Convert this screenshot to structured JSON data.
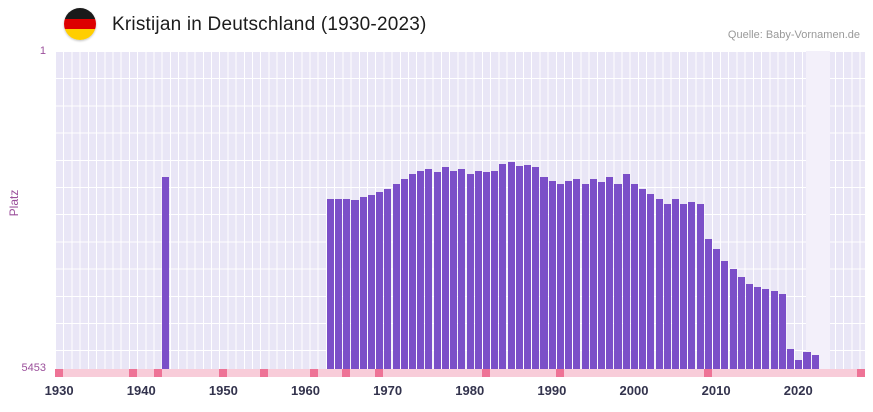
{
  "chart_data": {
    "type": "bar",
    "title": "Kristijan in Deutschland (1930-2023)",
    "source": "Quelle: Baby-Vornamen.de",
    "ylabel": "Platz",
    "y_axis": {
      "top_label": "1",
      "bottom_label": "5453",
      "min": 1,
      "max": 5453,
      "inverted": true
    },
    "x_range": [
      1930,
      2023
    ],
    "x_ticks": [
      "1930",
      "1940",
      "1950",
      "1960",
      "1970",
      "1980",
      "1990",
      "2000",
      "2010",
      "2020"
    ],
    "grid": true,
    "legend": "none",
    "points": [
      {
        "year": 1943,
        "rank": 2160
      },
      {
        "year": 1963,
        "rank": 2540
      },
      {
        "year": 1964,
        "rank": 2530
      },
      {
        "year": 1965,
        "rank": 2540
      },
      {
        "year": 1966,
        "rank": 2560
      },
      {
        "year": 1967,
        "rank": 2500
      },
      {
        "year": 1968,
        "rank": 2470
      },
      {
        "year": 1969,
        "rank": 2420
      },
      {
        "year": 1970,
        "rank": 2370
      },
      {
        "year": 1971,
        "rank": 2280
      },
      {
        "year": 1972,
        "rank": 2200
      },
      {
        "year": 1973,
        "rank": 2110
      },
      {
        "year": 1974,
        "rank": 2060
      },
      {
        "year": 1975,
        "rank": 2030
      },
      {
        "year": 1976,
        "rank": 2080
      },
      {
        "year": 1977,
        "rank": 1990
      },
      {
        "year": 1978,
        "rank": 2060
      },
      {
        "year": 1979,
        "rank": 2030
      },
      {
        "year": 1980,
        "rank": 2110
      },
      {
        "year": 1981,
        "rank": 2060
      },
      {
        "year": 1982,
        "rank": 2080
      },
      {
        "year": 1983,
        "rank": 2060
      },
      {
        "year": 1984,
        "rank": 1940
      },
      {
        "year": 1985,
        "rank": 1910
      },
      {
        "year": 1986,
        "rank": 1980
      },
      {
        "year": 1987,
        "rank": 1960
      },
      {
        "year": 1988,
        "rank": 1990
      },
      {
        "year": 1989,
        "rank": 2160
      },
      {
        "year": 1990,
        "rank": 2230
      },
      {
        "year": 1991,
        "rank": 2280
      },
      {
        "year": 1992,
        "rank": 2230
      },
      {
        "year": 1993,
        "rank": 2200
      },
      {
        "year": 1994,
        "rank": 2280
      },
      {
        "year": 1995,
        "rank": 2200
      },
      {
        "year": 1996,
        "rank": 2250
      },
      {
        "year": 1997,
        "rank": 2160
      },
      {
        "year": 1998,
        "rank": 2280
      },
      {
        "year": 1999,
        "rank": 2110
      },
      {
        "year": 2000,
        "rank": 2280
      },
      {
        "year": 2001,
        "rank": 2370
      },
      {
        "year": 2002,
        "rank": 2460
      },
      {
        "year": 2003,
        "rank": 2540
      },
      {
        "year": 2004,
        "rank": 2630
      },
      {
        "year": 2005,
        "rank": 2540
      },
      {
        "year": 2006,
        "rank": 2630
      },
      {
        "year": 2007,
        "rank": 2590
      },
      {
        "year": 2008,
        "rank": 2630
      },
      {
        "year": 2009,
        "rank": 3230
      },
      {
        "year": 2010,
        "rank": 3400
      },
      {
        "year": 2011,
        "rank": 3600
      },
      {
        "year": 2012,
        "rank": 3740
      },
      {
        "year": 2013,
        "rank": 3880
      },
      {
        "year": 2014,
        "rank": 4000
      },
      {
        "year": 2015,
        "rank": 4050
      },
      {
        "year": 2016,
        "rank": 4080
      },
      {
        "year": 2017,
        "rank": 4120
      },
      {
        "year": 2018,
        "rank": 4170
      },
      {
        "year": 2019,
        "rank": 5110
      },
      {
        "year": 2020,
        "rank": 5290
      },
      {
        "year": 2021,
        "rank": 5160
      },
      {
        "year": 2022,
        "rank": 5210
      }
    ],
    "baseline_marks": [
      1930,
      1939,
      1942,
      1950,
      1955,
      1961,
      1965,
      1969,
      1982,
      1991,
      2009
    ],
    "flag_icon": "germany-flag",
    "colors": {
      "bar": "#7b4fc8",
      "plot_bg": "#e9e6f6",
      "grid": "#ffffff",
      "highlight": "#f3f0fa",
      "baseline": "#f8ccd9",
      "baseline_mark": "#ee7396",
      "y_tick": "#9b4f9b",
      "x_tick": "#33334d",
      "title": "#1c1c1c",
      "source": "#999999",
      "flag_black": "#1a1a1a",
      "flag_red": "#dd0000",
      "flag_gold": "#ffce00"
    }
  }
}
